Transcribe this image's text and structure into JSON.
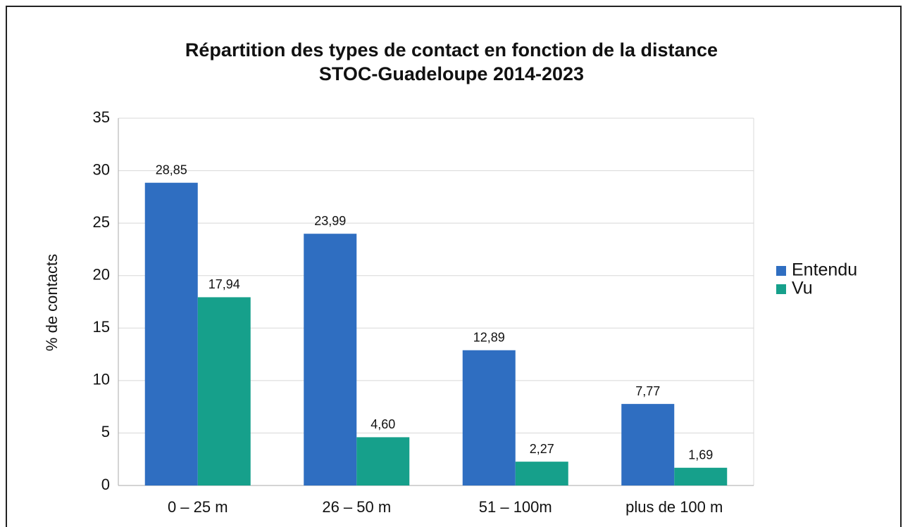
{
  "chart_data": {
    "type": "bar",
    "title": "Répartition des types de contact en fonction de la distance",
    "subtitle": "STOC-Guadeloupe 2014-2023",
    "y_label": "% de contacts",
    "categories": [
      "0 – 25 m",
      "26 – 50 m",
      "51 – 100m",
      "plus de 100 m"
    ],
    "series": [
      {
        "name": "Entendu",
        "color": "#2f6ec1",
        "values": [
          28.85,
          23.99,
          12.89,
          7.77
        ],
        "value_labels": [
          "28,85",
          "23,99",
          "12,89",
          "7,77"
        ]
      },
      {
        "name": "Vu",
        "color": "#16a08b",
        "values": [
          17.94,
          4.6,
          2.27,
          1.69
        ],
        "value_labels": [
          "17,94",
          "4,60",
          "2,27",
          "1,69"
        ]
      }
    ],
    "ylim": [
      0,
      35
    ],
    "yticks": [
      0,
      5,
      10,
      15,
      20,
      25,
      30,
      35
    ],
    "grid": true,
    "legend": "right"
  }
}
